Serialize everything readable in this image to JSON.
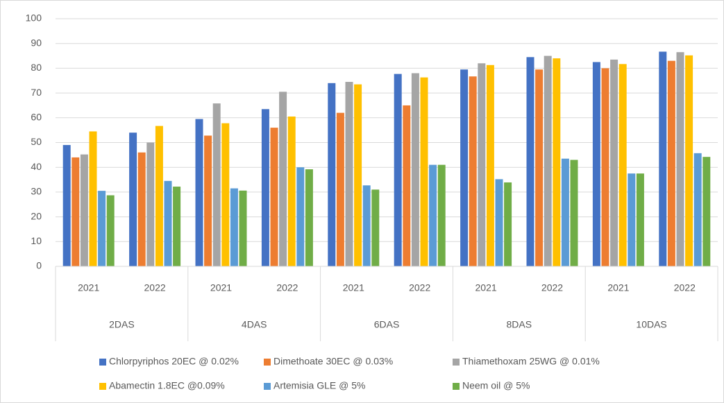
{
  "chart_data": {
    "type": "bar",
    "categories": [
      "2021",
      "2022",
      "2021",
      "2022",
      "2021",
      "2022",
      "2021",
      "2022",
      "2021",
      "2022"
    ],
    "category_groups": [
      "2DAS",
      "4DAS",
      "6DAS",
      "8DAS",
      "10DAS"
    ],
    "series": [
      {
        "name": "Chlorpyriphos 20EC @ 0.02%",
        "color": "#4472c4",
        "values": [
          49,
          54,
          59.5,
          63.5,
          74,
          77.7,
          79.5,
          84.5,
          82.5,
          86.7
        ]
      },
      {
        "name": "Dimethoate 30EC @ 0.03%",
        "color": "#ed7d31",
        "values": [
          44,
          46,
          52.8,
          56,
          62,
          65,
          76.7,
          79.5,
          80,
          83
        ]
      },
      {
        "name": "Thiamethoxam 25WG @ 0.01%",
        "color": "#a5a5a5",
        "values": [
          45.2,
          50,
          65.8,
          70.5,
          74.5,
          78,
          82,
          85,
          83.5,
          86.5
        ]
      },
      {
        "name": "Abamectin 1.8EC @0.09%",
        "color": "#ffc000",
        "values": [
          54.5,
          56.7,
          57.8,
          60.5,
          73.5,
          76.3,
          81.3,
          84,
          81.7,
          85.2
        ]
      },
      {
        "name": "Artemisia GLE @ 5%",
        "color": "#5b9bd5",
        "values": [
          30.5,
          34.5,
          31.5,
          40,
          32.7,
          41,
          35.2,
          43.5,
          37.5,
          45.7
        ]
      },
      {
        "name": "Neem oil @ 5%",
        "color": "#70ad47",
        "values": [
          28.7,
          32.2,
          30.6,
          39.2,
          31,
          41,
          33.9,
          43,
          37.5,
          44.2
        ]
      }
    ],
    "ylim": [
      0,
      100
    ],
    "yticks": [
      0,
      10,
      20,
      30,
      40,
      50,
      60,
      70,
      80,
      90,
      100
    ],
    "grid": true,
    "legend": "bottom"
  }
}
